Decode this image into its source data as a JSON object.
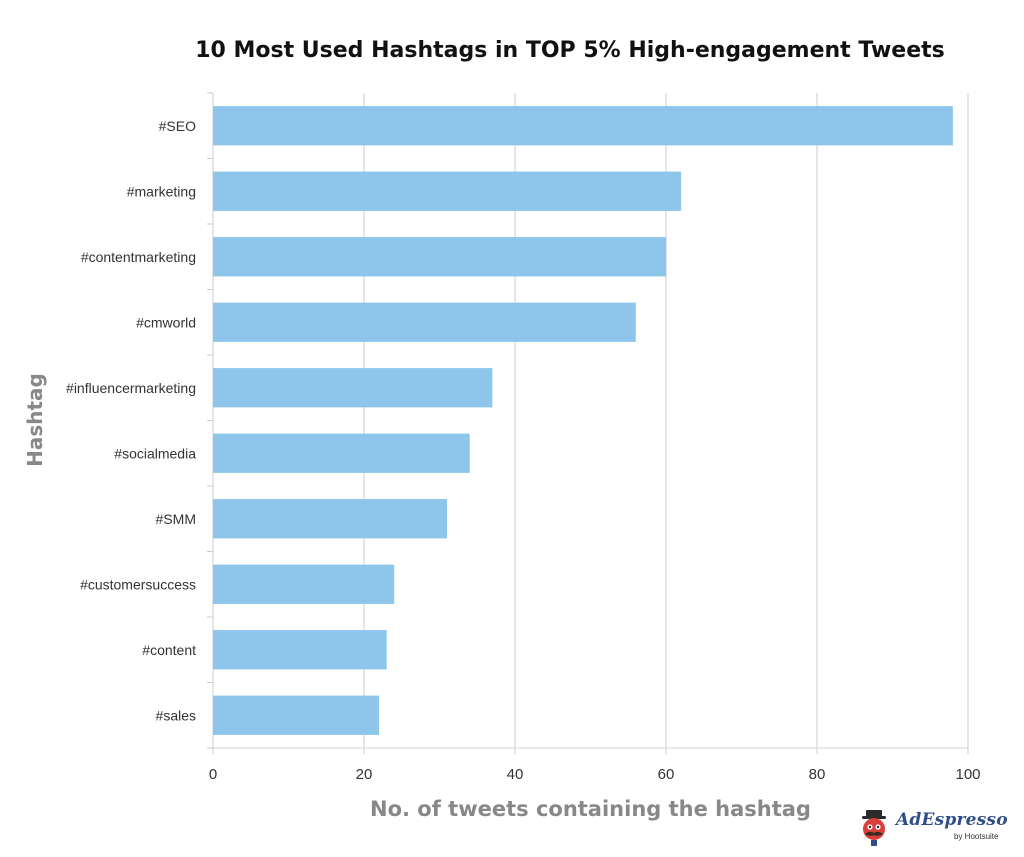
{
  "chart_data": {
    "type": "bar",
    "orientation": "horizontal",
    "title": "10 Most Used Hashtags in TOP 5% High-engagement Tweets",
    "xlabel": "No. of tweets containing the hashtag",
    "ylabel": "Hashtag",
    "categories": [
      "#SEO",
      "#marketing",
      "#contentmarketing",
      "#cmworld",
      "#influencermarketing",
      "#socialmedia",
      "#SMM",
      "#customersuccess",
      "#content",
      "#sales"
    ],
    "values": [
      98,
      62,
      60,
      56,
      37,
      34,
      31,
      24,
      23,
      22
    ],
    "xlim": [
      0,
      100
    ],
    "xticks": [
      0,
      20,
      40,
      60,
      80,
      100
    ],
    "grid": true,
    "bar_color": "#8dc6ea"
  },
  "branding": {
    "name": "AdEspresso",
    "sub": "by Hootsuite"
  }
}
